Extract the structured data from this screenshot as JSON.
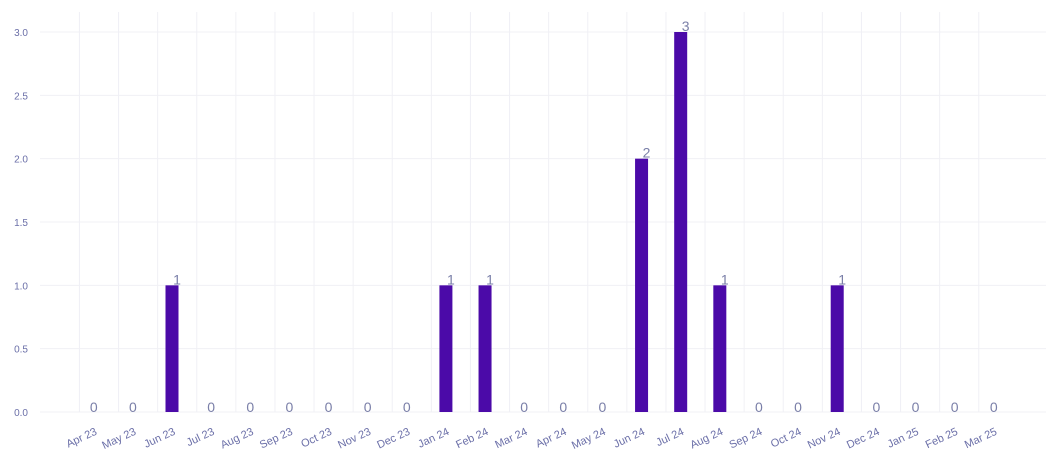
{
  "chart_data": {
    "type": "bar",
    "categories": [
      "Apr 23",
      "May 23",
      "Jun 23",
      "Jul 23",
      "Aug 23",
      "Sep 23",
      "Oct 23",
      "Nov 23",
      "Dec 23",
      "Jan 24",
      "Feb 24",
      "Mar 24",
      "Apr 24",
      "May 24",
      "Jun 24",
      "Jul 24",
      "Aug 24",
      "Sep 24",
      "Oct 24",
      "Nov 24",
      "Dec 24",
      "Jan 25",
      "Feb 25",
      "Mar 25"
    ],
    "values": [
      0,
      0,
      1,
      0,
      0,
      0,
      0,
      0,
      0,
      1,
      1,
      0,
      0,
      0,
      2,
      3,
      1,
      0,
      0,
      1,
      0,
      0,
      0,
      0
    ],
    "y_ticks": [
      "0.0",
      "0.5",
      "1.0",
      "1.5",
      "2.0",
      "2.5",
      "3.0"
    ],
    "ylim": [
      0,
      3
    ],
    "grid": true,
    "colors": {
      "bar": "#4b0aa8",
      "axis_text": "#6b6fa8",
      "data_label": "#7a7fa8",
      "grid": "#f0f0f5"
    }
  }
}
